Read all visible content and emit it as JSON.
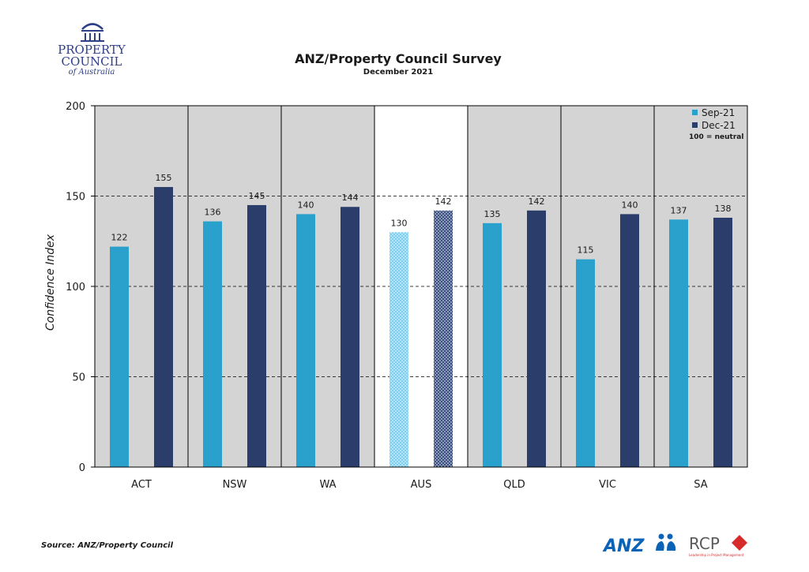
{
  "logos": {
    "property_council": {
      "line1": "PROPERTY",
      "line2": "COUNCIL",
      "line3": "of Australia"
    },
    "anz": "ANZ",
    "rcp": "RCP",
    "rcp_tagline": "Leadership in Project Management"
  },
  "source_note": "Source: ANZ/Property Council",
  "colors": {
    "sep": "#2aa0cd",
    "dec": "#2b3d6a",
    "panel": "#d4d4d4",
    "highlight_panel": "#ffffff"
  },
  "chart_data": {
    "type": "bar",
    "title": "ANZ/Property Council Survey",
    "subtitle": "December 2021",
    "xlabel": "",
    "ylabel": "Confidence Index",
    "ylim": [
      0,
      200
    ],
    "yticks": [
      0,
      50,
      100,
      150,
      200
    ],
    "grid": true,
    "legend_position": "top-right",
    "legend_note": "100 = neutral",
    "categories": [
      "ACT",
      "NSW",
      "WA",
      "AUS",
      "QLD",
      "VIC",
      "SA"
    ],
    "highlight_category": "AUS",
    "series": [
      {
        "name": "Sep-21",
        "values": [
          122,
          136,
          140,
          130,
          135,
          115,
          137
        ]
      },
      {
        "name": "Dec-21",
        "values": [
          155,
          145,
          144,
          142,
          142,
          140,
          138
        ]
      }
    ]
  }
}
